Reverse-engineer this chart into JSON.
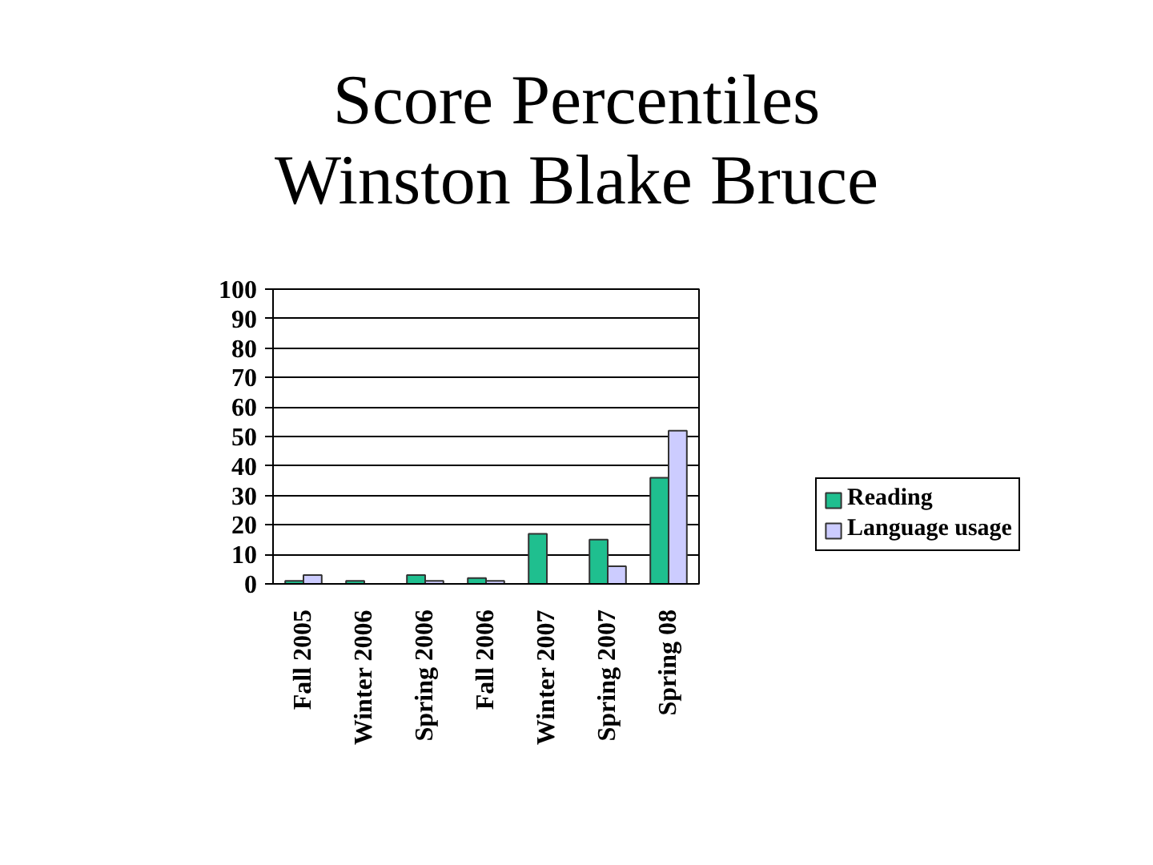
{
  "chart_data": {
    "type": "bar",
    "title": "Score Percentiles\nWinston Blake Bruce",
    "categories": [
      "Fall 2005",
      "Winter 2006",
      "Spring 2006",
      "Fall 2006",
      "Winter 2007",
      "Spring 2007",
      "Spring 08"
    ],
    "series": [
      {
        "name": "Reading",
        "color": "#1fbf8f",
        "values": [
          1,
          1,
          3,
          2,
          17,
          15,
          36
        ]
      },
      {
        "name": "Language usage",
        "color": "#ccccff",
        "values": [
          3,
          null,
          1,
          1,
          null,
          6,
          52
        ]
      }
    ],
    "ylim": [
      0,
      100
    ],
    "yticks": [
      0,
      10,
      20,
      30,
      40,
      50,
      60,
      70,
      80,
      90,
      100
    ],
    "grid": "y",
    "legend": "right"
  }
}
